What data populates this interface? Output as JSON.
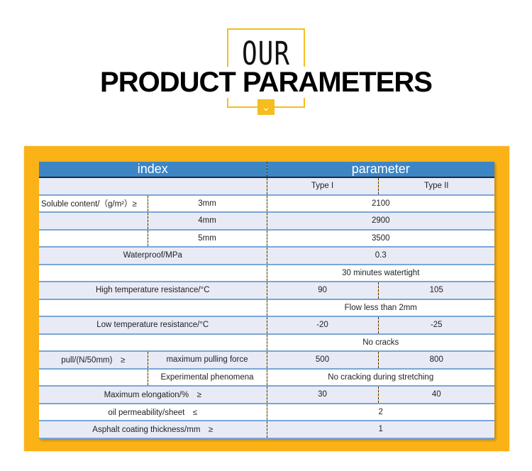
{
  "header": {
    "small": "OUR",
    "title": "PRODUCT PARAMETERS",
    "chevron_icon": "chevron-down-icon"
  },
  "colors": {
    "accent": "#fbb217",
    "header_blue": "#3d86c6",
    "row_alt": "#e8ebf6"
  },
  "table": {
    "head": {
      "index": "index",
      "parameter": "parameter"
    },
    "types": [
      "Type I",
      "Type II"
    ],
    "rows": [
      {
        "a": "Soluble content/（g/m²）≥",
        "b": "3mm",
        "v": "2100"
      },
      {
        "a": "",
        "b": "4mm",
        "v": "2900"
      },
      {
        "a": "",
        "b": "5mm",
        "v": "3500"
      },
      {
        "idx": "Waterproof/MPa",
        "v": "0.3"
      },
      {
        "idx": "",
        "v": "30 minutes watertight"
      },
      {
        "idx": "High temperature resistance/°C",
        "v1": "90",
        "v2": "105"
      },
      {
        "idx": "",
        "v": "Flow less than 2mm"
      },
      {
        "idx": "Low temperature resistance/°C",
        "v1": "-20",
        "v2": "-25"
      },
      {
        "idx": "",
        "v": "No cracks"
      },
      {
        "a": "pull/(N/50mm)　≥",
        "b": "maximum pulling force",
        "v1": "500",
        "v2": "800"
      },
      {
        "a": "",
        "b": "Experimental phenomena",
        "v": "No cracking during stretching"
      },
      {
        "idx": "Maximum elongation/%　≥",
        "v1": "30",
        "v2": "40"
      },
      {
        "idx": "oil permeability/sheet　≤",
        "v": "2"
      },
      {
        "idx": "Asphalt coating thickness/mm　≥",
        "v": "1"
      }
    ]
  }
}
